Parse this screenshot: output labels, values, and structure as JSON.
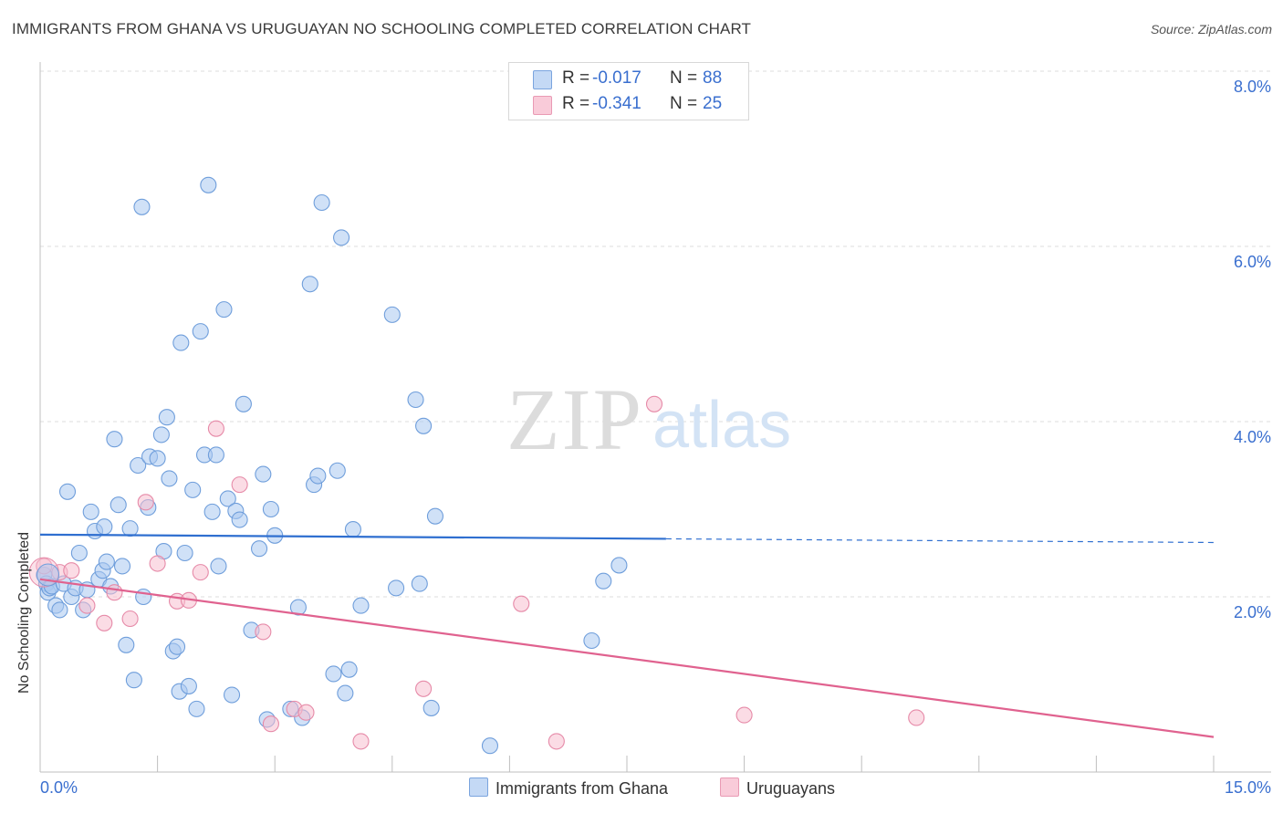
{
  "title": "IMMIGRANTS FROM GHANA VS URUGUAYAN NO SCHOOLING COMPLETED CORRELATION CHART",
  "source": "Source: ZipAtlas.com",
  "watermark": {
    "zip": "ZIP",
    "atlas": "atlas"
  },
  "legend_top": {
    "rows": [
      {
        "r_label": "R =",
        "r_value": "-0.017",
        "n_label": "N =",
        "n_value": "88"
      },
      {
        "r_label": "R =",
        "r_value": "-0.341",
        "n_label": "N =",
        "n_value": "25"
      }
    ]
  },
  "legend_bottom": {
    "items": [
      "Immigrants from Ghana",
      "Uruguayans"
    ]
  },
  "colors": {
    "blue_fill": "#aac8f0",
    "blue_stroke": "#6f9edb",
    "blue_line": "#2f6fd0",
    "pink_fill": "#f7bfd0",
    "pink_stroke": "#e68aa8",
    "pink_line": "#e0628f",
    "axis_label": "#3a6fcf"
  },
  "chart_data": {
    "type": "scatter",
    "title": "IMMIGRANTS FROM GHANA VS URUGUAYAN NO SCHOOLING COMPLETED CORRELATION CHART",
    "xlabel": "",
    "ylabel": "No Schooling Completed",
    "xlim": [
      0,
      15
    ],
    "ylim": [
      0,
      8
    ],
    "x_tick_labels": [
      "0.0%",
      "15.0%"
    ],
    "y_tick_labels": [
      "2.0%",
      "4.0%",
      "6.0%",
      "8.0%"
    ],
    "y_ticks": [
      2,
      4,
      6,
      8
    ],
    "grid": true,
    "series": [
      {
        "name": "Immigrants from Ghana",
        "r": -0.017,
        "n": 88,
        "trend": {
          "x0": 0,
          "y0": 2.71,
          "x_solid_end": 8.0,
          "x1": 15,
          "y1": 2.62
        },
        "points": [
          [
            0.05,
            2.25
          ],
          [
            0.08,
            2.15
          ],
          [
            0.1,
            2.05
          ],
          [
            0.12,
            2.1
          ],
          [
            0.15,
            2.12
          ],
          [
            0.2,
            1.9
          ],
          [
            0.25,
            1.85
          ],
          [
            0.3,
            2.15
          ],
          [
            0.35,
            3.2
          ],
          [
            0.4,
            2.0
          ],
          [
            0.45,
            2.1
          ],
          [
            0.5,
            2.5
          ],
          [
            0.55,
            1.85
          ],
          [
            0.6,
            2.08
          ],
          [
            0.65,
            2.97
          ],
          [
            0.7,
            2.75
          ],
          [
            0.75,
            2.2
          ],
          [
            0.8,
            2.3
          ],
          [
            0.82,
            2.8
          ],
          [
            0.85,
            2.4
          ],
          [
            0.9,
            2.12
          ],
          [
            0.95,
            3.8
          ],
          [
            1.0,
            3.05
          ],
          [
            1.05,
            2.35
          ],
          [
            1.1,
            1.45
          ],
          [
            1.15,
            2.78
          ],
          [
            1.2,
            1.05
          ],
          [
            1.25,
            3.5
          ],
          [
            1.3,
            6.45
          ],
          [
            1.32,
            2.0
          ],
          [
            1.38,
            3.02
          ],
          [
            1.4,
            3.6
          ],
          [
            1.5,
            3.58
          ],
          [
            1.55,
            3.85
          ],
          [
            1.58,
            2.52
          ],
          [
            1.62,
            4.05
          ],
          [
            1.65,
            3.35
          ],
          [
            1.7,
            1.38
          ],
          [
            1.75,
            1.43
          ],
          [
            1.78,
            0.92
          ],
          [
            1.8,
            4.9
          ],
          [
            1.85,
            2.5
          ],
          [
            1.9,
            0.98
          ],
          [
            1.95,
            3.22
          ],
          [
            2.0,
            0.72
          ],
          [
            2.05,
            5.03
          ],
          [
            2.1,
            3.62
          ],
          [
            2.15,
            6.7
          ],
          [
            2.2,
            2.97
          ],
          [
            2.25,
            3.62
          ],
          [
            2.28,
            2.35
          ],
          [
            2.35,
            5.28
          ],
          [
            2.4,
            3.12
          ],
          [
            2.45,
            0.88
          ],
          [
            2.5,
            2.98
          ],
          [
            2.55,
            2.88
          ],
          [
            2.6,
            4.2
          ],
          [
            2.7,
            1.62
          ],
          [
            2.8,
            2.55
          ],
          [
            2.85,
            3.4
          ],
          [
            2.9,
            0.6
          ],
          [
            2.95,
            3.0
          ],
          [
            3.0,
            2.7
          ],
          [
            3.2,
            0.72
          ],
          [
            3.3,
            1.88
          ],
          [
            3.35,
            0.62
          ],
          [
            3.45,
            5.57
          ],
          [
            3.5,
            3.28
          ],
          [
            3.55,
            3.38
          ],
          [
            3.6,
            6.5
          ],
          [
            3.75,
            1.12
          ],
          [
            3.8,
            3.44
          ],
          [
            3.85,
            6.1
          ],
          [
            3.9,
            0.9
          ],
          [
            3.95,
            1.17
          ],
          [
            4.0,
            2.77
          ],
          [
            4.1,
            1.9
          ],
          [
            4.5,
            5.22
          ],
          [
            4.55,
            2.1
          ],
          [
            4.8,
            4.25
          ],
          [
            4.85,
            2.15
          ],
          [
            4.9,
            3.95
          ],
          [
            5.0,
            0.73
          ],
          [
            5.05,
            2.92
          ],
          [
            5.75,
            0.3
          ],
          [
            7.05,
            1.5
          ],
          [
            7.2,
            2.18
          ],
          [
            7.4,
            2.36
          ]
        ]
      },
      {
        "name": "Uruguayans",
        "r": -0.341,
        "n": 25,
        "trend": {
          "x0": 0,
          "y0": 2.2,
          "x1": 15,
          "y1": 0.4
        },
        "points": [
          [
            0.05,
            2.35
          ],
          [
            0.25,
            2.28
          ],
          [
            0.4,
            2.3
          ],
          [
            0.6,
            1.9
          ],
          [
            0.82,
            1.7
          ],
          [
            0.95,
            2.05
          ],
          [
            1.15,
            1.75
          ],
          [
            1.35,
            3.08
          ],
          [
            1.5,
            2.38
          ],
          [
            1.75,
            1.95
          ],
          [
            1.9,
            1.96
          ],
          [
            2.05,
            2.28
          ],
          [
            2.25,
            3.92
          ],
          [
            2.55,
            3.28
          ],
          [
            2.85,
            1.6
          ],
          [
            2.95,
            0.55
          ],
          [
            3.25,
            0.72
          ],
          [
            3.4,
            0.68
          ],
          [
            4.1,
            0.35
          ],
          [
            4.9,
            0.95
          ],
          [
            6.15,
            1.92
          ],
          [
            6.6,
            0.35
          ],
          [
            7.85,
            4.2
          ],
          [
            9.0,
            0.65
          ],
          [
            11.2,
            0.62
          ]
        ]
      }
    ]
  }
}
